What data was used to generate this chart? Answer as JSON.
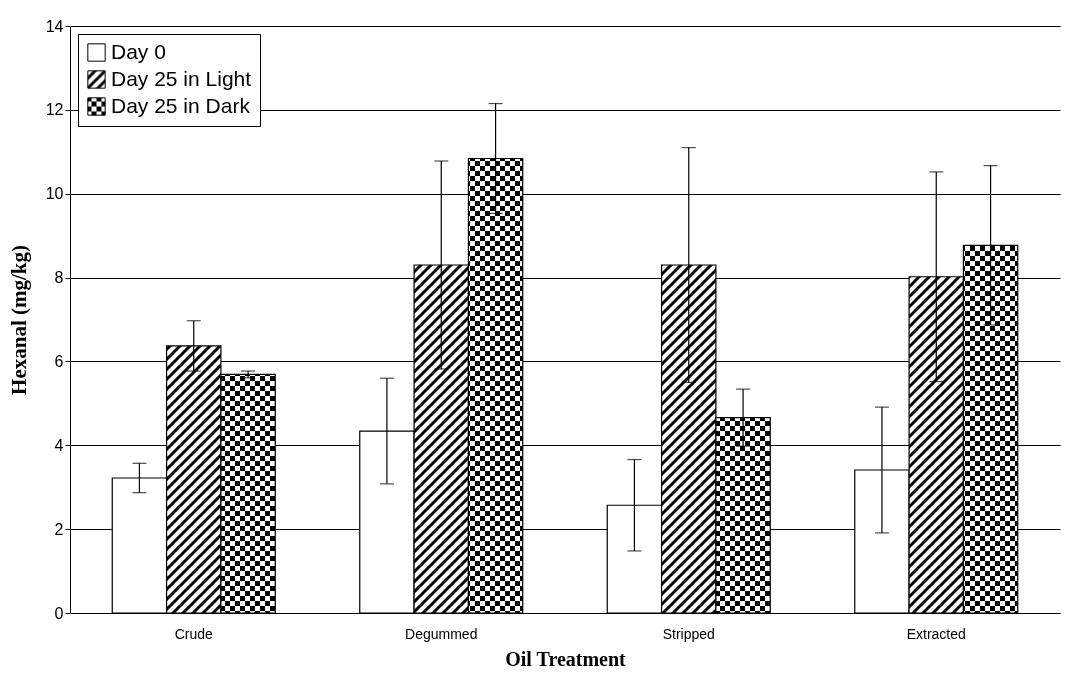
{
  "chart_data": {
    "type": "bar",
    "xlabel": "Oil Treatment",
    "ylabel": "Hexanal (mg/kg)",
    "categories": [
      "Crude",
      "Degummed",
      "Stripped",
      "Extracted"
    ],
    "series": [
      {
        "name": "Day 0",
        "color": "#ffffff",
        "values": [
          3.22,
          4.34,
          2.57,
          3.41
        ],
        "errors": [
          0.35,
          1.26,
          1.09,
          1.5
        ]
      },
      {
        "name": "Day 25 in Light",
        "color": "#000000",
        "values": [
          6.37,
          8.3,
          8.3,
          8.02
        ],
        "errors": [
          0.6,
          2.48,
          2.8,
          2.5
        ]
      },
      {
        "name": "Day 25 in Dark",
        "color": "#000000",
        "values": [
          5.69,
          10.84,
          4.66,
          8.77
        ],
        "errors": [
          0.08,
          1.31,
          0.68,
          1.9
        ]
      }
    ],
    "ylim": [
      0,
      14
    ],
    "yticks": [
      0,
      2,
      4,
      6,
      8,
      10,
      12,
      14
    ],
    "grid": "y",
    "legend": "top left"
  }
}
